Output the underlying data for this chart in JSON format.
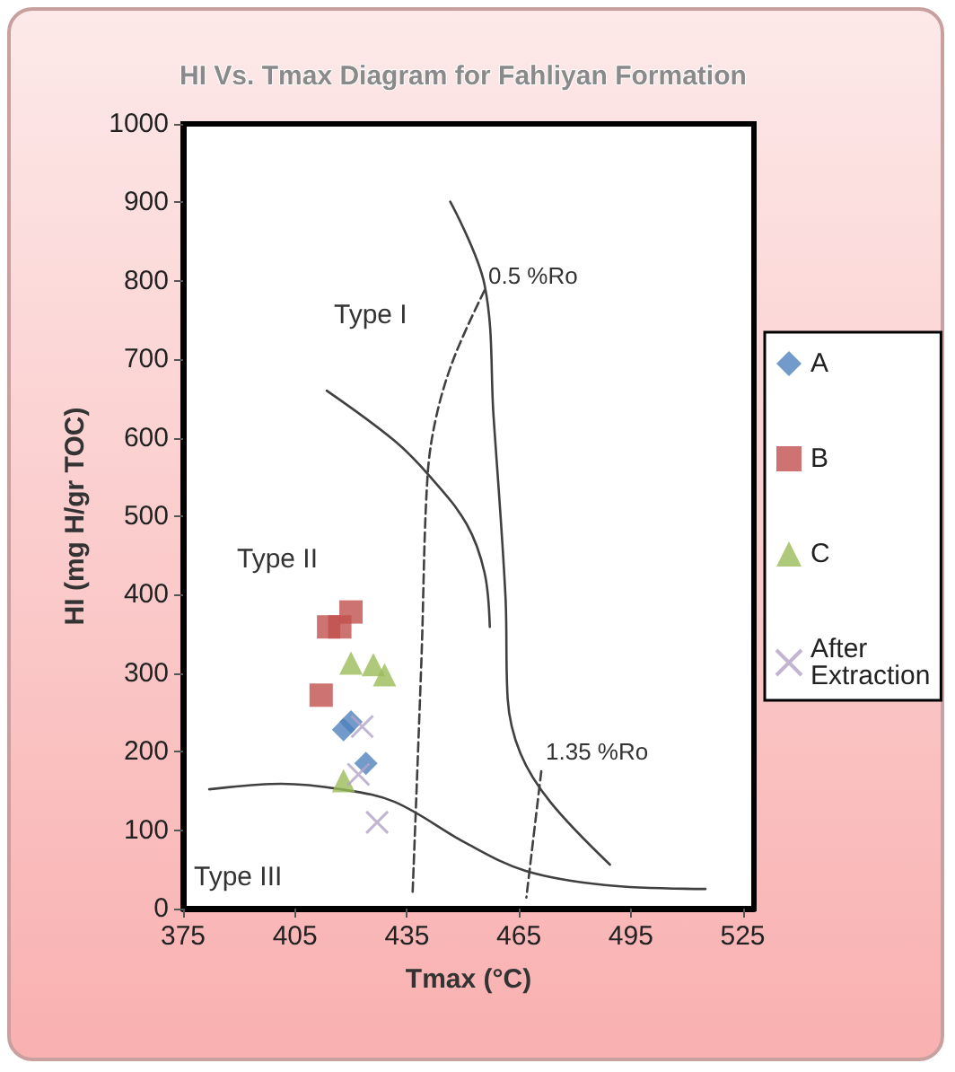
{
  "chart_data": {
    "type": "scatter",
    "title": "HI Vs. Tmax Diagram for Fahliyan Formation",
    "xlabel": "Tmax (°C)",
    "ylabel": "HI (mg H/gr TOC)",
    "xlim": [
      375,
      528
    ],
    "xticks": [
      375,
      405,
      435,
      465,
      495,
      525
    ],
    "ylim": [
      0,
      1000
    ],
    "yticks": [
      0,
      100,
      200,
      300,
      400,
      500,
      600,
      700,
      800,
      900,
      1000
    ],
    "grid": false,
    "legend": "right",
    "series": [
      {
        "name": "A",
        "color": "#4f81bd",
        "marker": "diamond",
        "x": [
          418,
          420,
          424
        ],
        "values": [
          228,
          238,
          185
        ]
      },
      {
        "name": "B",
        "color": "#c0504d",
        "marker": "square",
        "x": [
          414,
          417,
          420,
          412
        ],
        "values": [
          359,
          359,
          378,
          272
        ]
      },
      {
        "name": "C",
        "color": "#9bbb59",
        "marker": "triangle",
        "x": [
          420,
          426,
          429,
          418
        ],
        "values": [
          313,
          311,
          298,
          163
        ]
      },
      {
        "name": "After Extraction",
        "color": "#b3a2c7",
        "marker": "cross",
        "x": [
          423,
          422,
          427
        ],
        "values": [
          232,
          171,
          110
        ]
      },
      {
        "type": "line",
        "color": "#404040",
        "marker": "none",
        "line_style": "solid",
        "x": [
          446.6,
          455.8,
          458.2,
          461.4,
          462,
          465.4,
          473.4,
          489.4
        ],
        "values": [
          901,
          795,
          628,
          398,
          267,
          198,
          136,
          56
        ]
      },
      {
        "type": "line",
        "color": "#404040",
        "marker": "none",
        "line_style": "solid",
        "x": [
          413.5,
          431.7,
          441.3,
          451,
          455.8,
          457.2
        ],
        "values": [
          660,
          596,
          550,
          490,
          428,
          359
        ]
      },
      {
        "type": "line",
        "color": "#404040",
        "marker": "none",
        "line_style": "solid",
        "x": [
          382,
          401.3,
          417.3,
          431.7,
          451,
          466.8,
          488,
          515
        ],
        "values": [
          152,
          159,
          152,
          136,
          83,
          48,
          30,
          25
        ]
      },
      {
        "type": "line",
        "color": "#404040",
        "marker": "none",
        "line_style": "dashed",
        "x": [
          455.8,
          447.7,
          442.9,
          440.5,
          438.9,
          436.5
        ],
        "values": [
          788,
          703,
          628,
          550,
          320,
          18
        ]
      },
      {
        "type": "line",
        "color": "#404040",
        "marker": "none",
        "line_style": "dashed",
        "x": [
          471,
          467
        ],
        "values": [
          175,
          14
        ]
      }
    ],
    "annotations": [
      "Type I",
      "Type II",
      "Type III",
      "0.5 %Ro",
      "1.35 %Ro"
    ]
  }
}
